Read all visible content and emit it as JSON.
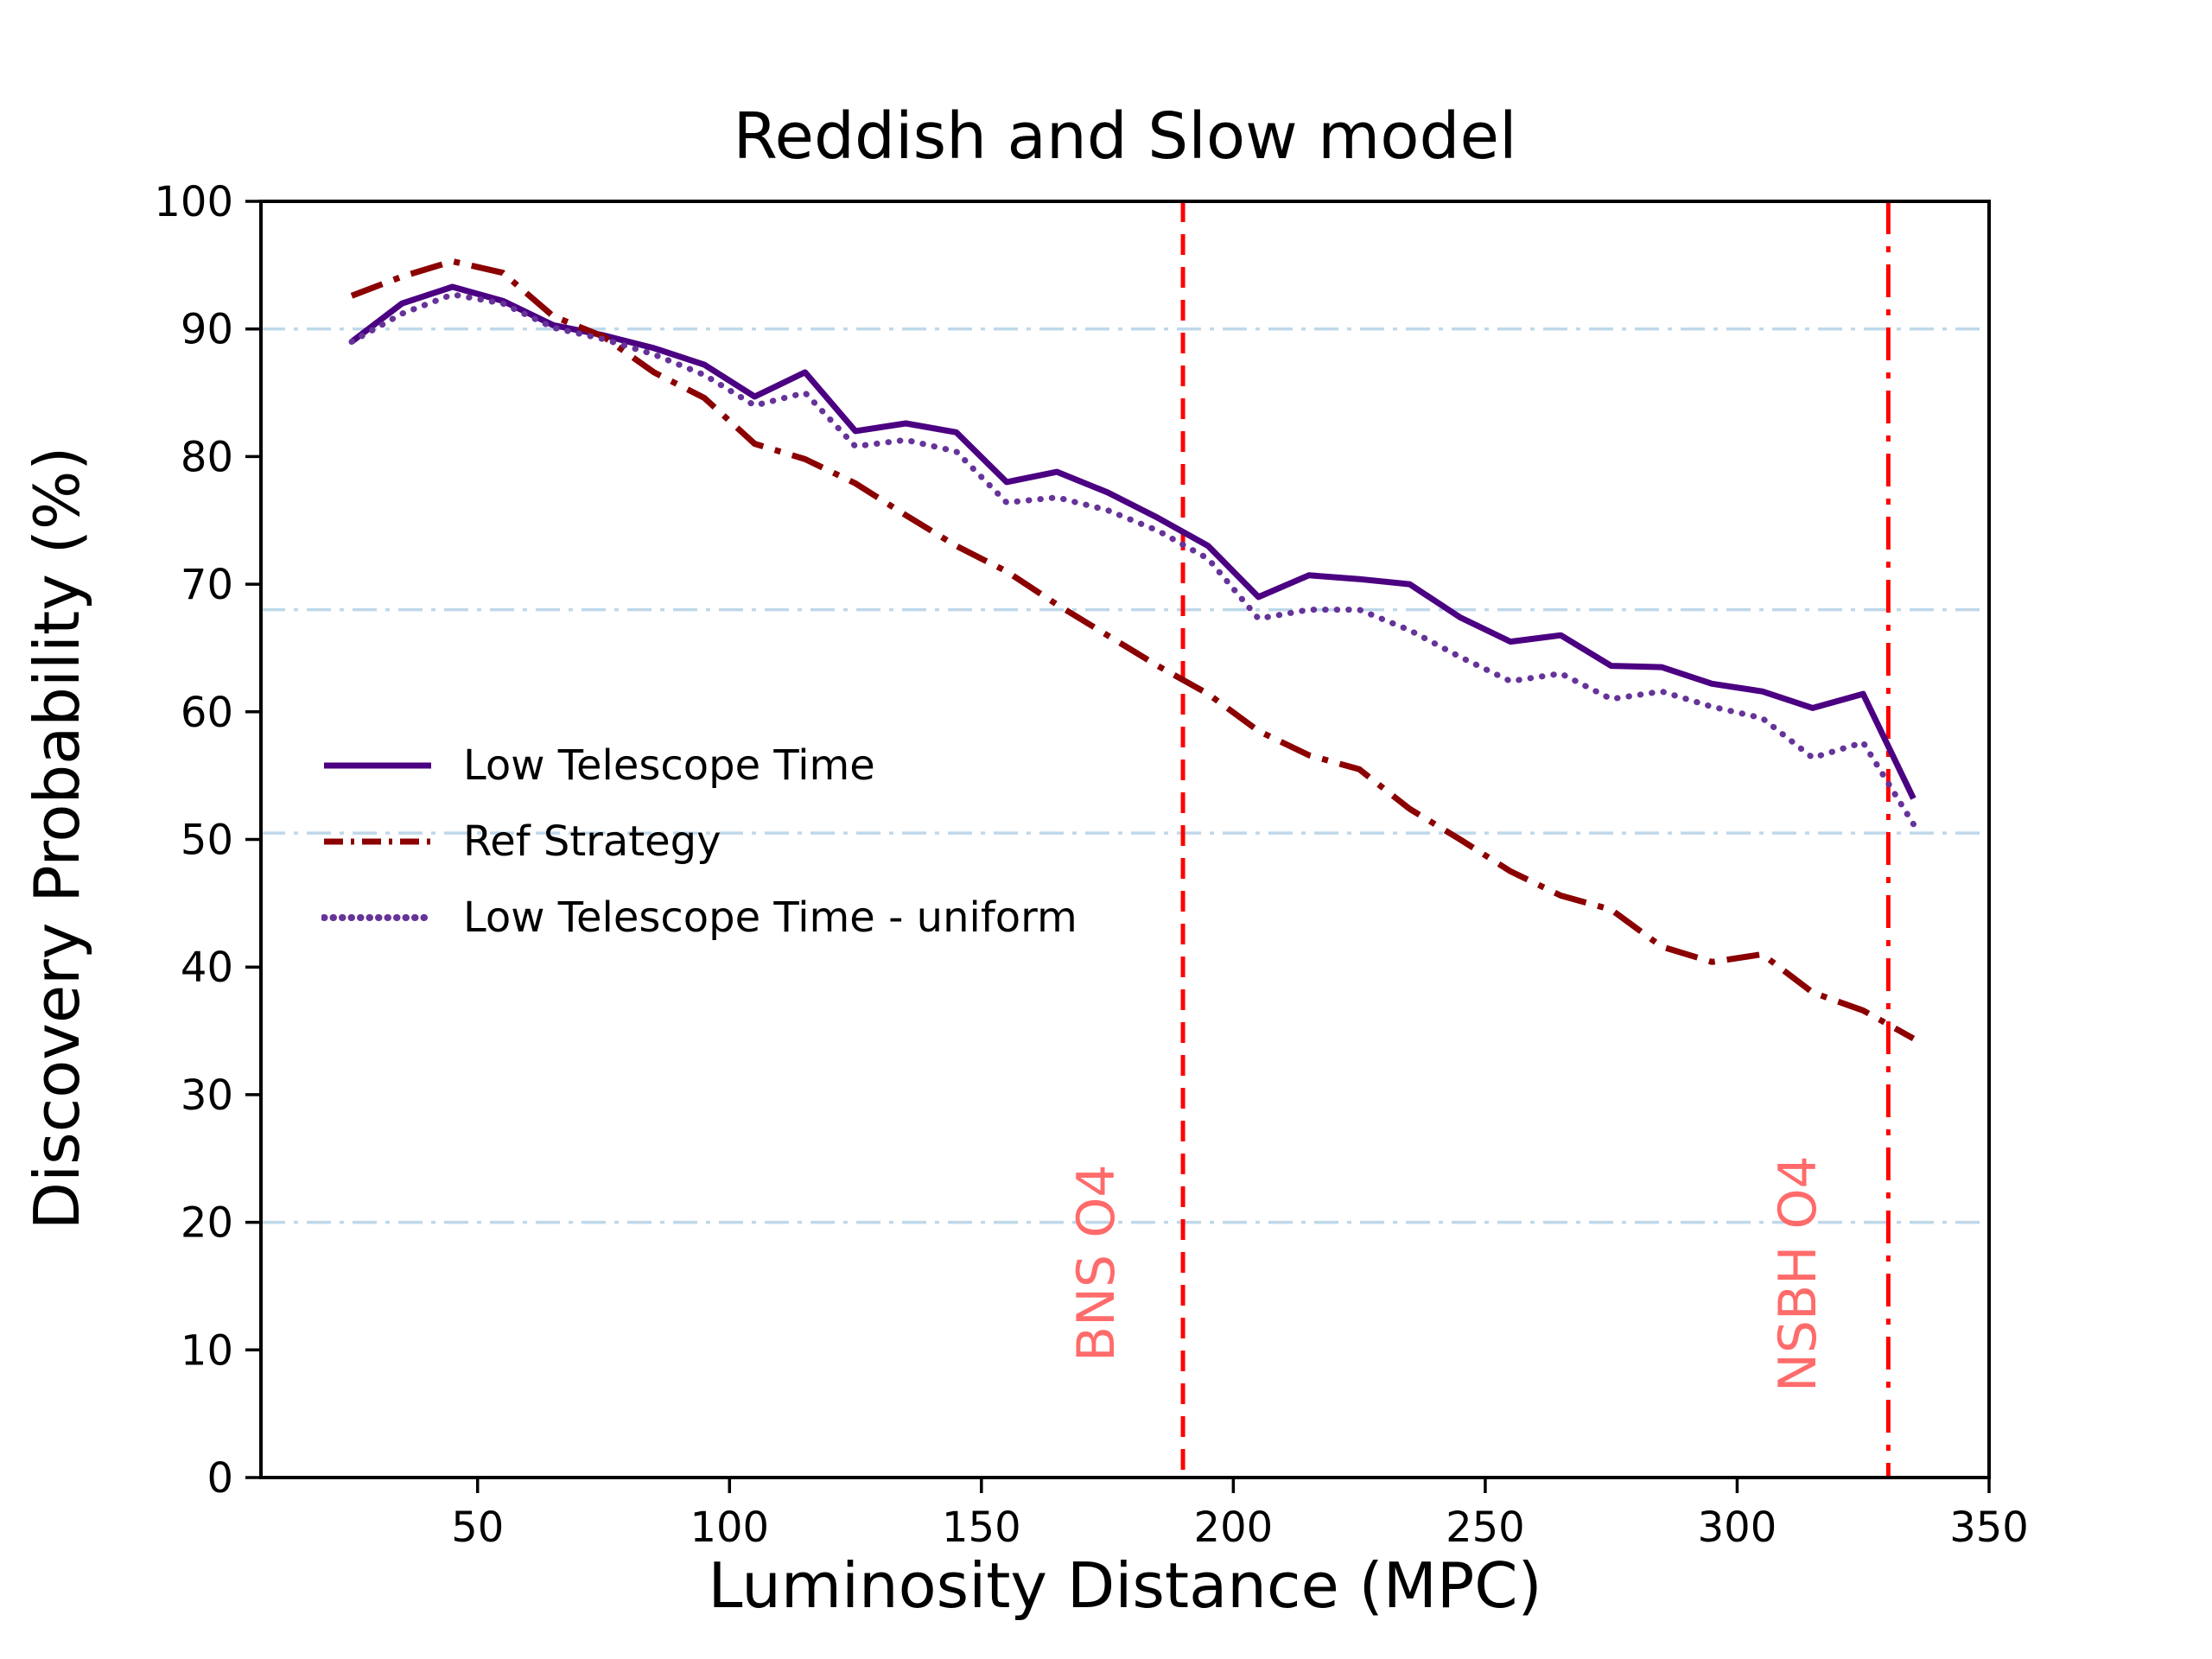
{
  "chart_data": {
    "type": "line",
    "title": "Reddish and Slow model",
    "xlabel": "Luminosity Distance (MPC)",
    "ylabel": "Discovery Probability (%)",
    "xlim": [
      7,
      350
    ],
    "ylim": [
      0,
      100
    ],
    "x_ticks": [
      50,
      100,
      150,
      200,
      250,
      300,
      350
    ],
    "y_ticks": [
      0,
      10,
      20,
      30,
      40,
      50,
      60,
      70,
      80,
      90,
      100
    ],
    "grid": "horizontal dash-dot lines",
    "gridlines_y": [
      90,
      68,
      50.5,
      20
    ],
    "grid_color": "#BFD8EA",
    "legend_position": "center left, no frame",
    "x": [
      25,
      35,
      45,
      55,
      65,
      75,
      85,
      95,
      105,
      115,
      125,
      135,
      145,
      155,
      165,
      175,
      185,
      195,
      205,
      215,
      225,
      235,
      245,
      255,
      265,
      275,
      285,
      295,
      305,
      315,
      325,
      335
    ],
    "series": [
      {
        "name": "Low Telescope Time",
        "color": "#4B0082",
        "style": "solid",
        "values": [
          89.0,
          92.0,
          93.3,
          92.2,
          90.3,
          89.5,
          88.5,
          87.2,
          84.7,
          86.6,
          82.0,
          82.6,
          81.9,
          78.0,
          78.8,
          77.2,
          75.2,
          73.0,
          69.0,
          70.7,
          70.4,
          70.0,
          67.4,
          65.5,
          66.0,
          63.6,
          63.5,
          62.2,
          61.6,
          60.3,
          61.4,
          53.2
        ]
      },
      {
        "name": "Ref Strategy",
        "color": "#8B0000",
        "style": "dashdot",
        "values": [
          92.6,
          94.1,
          95.3,
          94.4,
          91.0,
          89.4,
          86.6,
          84.6,
          81.0,
          79.8,
          77.9,
          75.4,
          73.0,
          71.0,
          68.4,
          66.0,
          63.6,
          61.4,
          58.5,
          56.6,
          55.5,
          52.4,
          50.0,
          47.5,
          45.6,
          44.5,
          41.6,
          40.4,
          41.0,
          38.0,
          36.6,
          34.4
        ]
      },
      {
        "name": "Low Telescope Time - uniform",
        "color": "#663399",
        "style": "dotted",
        "values": [
          89.0,
          91.2,
          92.7,
          92.0,
          90.1,
          89.2,
          88.0,
          86.4,
          84.0,
          85.0,
          80.8,
          81.3,
          80.4,
          76.4,
          76.8,
          75.8,
          74.2,
          72.0,
          67.3,
          68.0,
          68.0,
          66.4,
          64.3,
          62.4,
          63.0,
          61.0,
          61.6,
          60.4,
          59.5,
          56.4,
          57.6,
          51.2
        ]
      }
    ],
    "vlines": [
      {
        "label": "BNS O4",
        "x": 190,
        "style": "dashed",
        "color": "#FF0000",
        "label_color": "#FF6B6B"
      },
      {
        "label": "NSBH O4",
        "x": 330,
        "style": "dashdot",
        "color": "#FF0000",
        "label_color": "#FF6B6B"
      }
    ]
  }
}
